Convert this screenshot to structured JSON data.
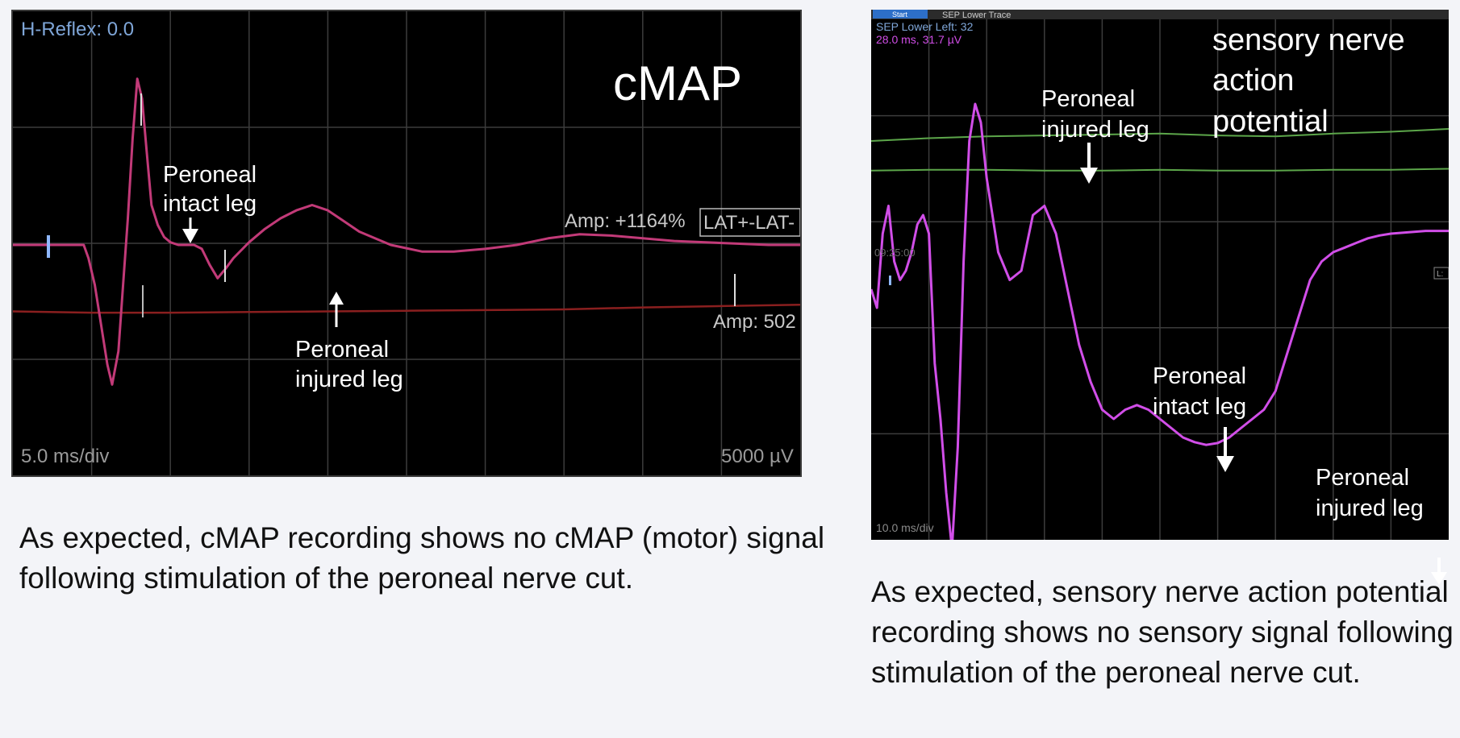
{
  "left_panel": {
    "header_readout": "H-Reflex: 0.0",
    "title": "cMAP",
    "amp_readout": "Amp: +1164%",
    "lat_box": "LAT+-LAT-",
    "amp_readout_2": "Amp: 502",
    "timebase": "5.0 ms/div",
    "sensitivity": "5000 µV",
    "annotation_intact_line1": "Peroneal",
    "annotation_intact_line2": "intact leg",
    "annotation_injured_line1": "Peroneal",
    "annotation_injured_line2": "injured leg",
    "caption": "As expected, cMAP recording shows no cMAP (motor) signal following stimulation of the peroneal nerve cut.",
    "colors": {
      "intact_trace": "#c23a78",
      "injured_trace": "#8a1f1f",
      "grid": "#3c3c3c",
      "overlay_text": "#7fa6d8"
    }
  },
  "right_panel": {
    "tab_start": "Start",
    "tab_trace": "SEP Lower Trace",
    "header_readout": "SEP Lower Left: 32",
    "cursor_readout": "28.0 ms, 31.7 µV",
    "time_stamp": "09:25:00",
    "side_marker": "L:",
    "title_line1": "sensory nerve",
    "title_line2": "action",
    "title_line3": "potential",
    "timebase": "10.0 ms/div",
    "annotation_injured_top_line1": "Peroneal",
    "annotation_injured_top_line2": "injured leg",
    "annotation_intact_line1": "Peroneal",
    "annotation_intact_line2": "intact leg",
    "annotation_injured_bottom_line1": "Peroneal",
    "annotation_injured_bottom_line2": "injured leg",
    "caption": "As expected, sensory nerve action potential recording shows no sensory signal following stimulation of the peroneal nerve cut.",
    "colors": {
      "sensory_trace": "#d14ee8",
      "flat_traces": "#5ca64a",
      "grid": "#3c3c3c",
      "overlay_text": "#7fa6d8"
    }
  },
  "chart_data": [
    {
      "type": "line",
      "title": "cMAP",
      "x_unit": "ms",
      "xlim": [
        0,
        50
      ],
      "series": [
        {
          "x": [
            0,
            4.5,
            4.8,
            5.2,
            5.6,
            6.0,
            6.3,
            6.7,
            7.0,
            7.3,
            7.6,
            7.9,
            8.2,
            8.5,
            8.8,
            9.2,
            9.6,
            10.0,
            10.5,
            11.0,
            11.5,
            12.0,
            12.5,
            13.0,
            13.5,
            14.0,
            15.0,
            16.0,
            17.0,
            18.0,
            19.0,
            20.0,
            21.0,
            22.0,
            24.0,
            26.0,
            28.0,
            30.0,
            32.0,
            34.0,
            36.0,
            38.0,
            40.0,
            42.0,
            44.0,
            46.0,
            48.0,
            50.0
          ],
          "y": [
            0,
            0,
            -1,
            -3,
            -6,
            -9,
            -10.5,
            -8,
            -3,
            2,
            8,
            12.5,
            11,
            7,
            3,
            1.5,
            0.6,
            0.2,
            0,
            0,
            0,
            -0.3,
            -1.5,
            -2.5,
            -1.8,
            -1,
            0.2,
            1.2,
            2.0,
            2.6,
            3.0,
            2.6,
            1.8,
            1.0,
            0,
            -0.5,
            -0.5,
            -0.3,
            0,
            0.5,
            0.8,
            0.7,
            0.5,
            0.3,
            0.2,
            0.1,
            0,
            0
          ]
        },
        {
          "x": [
            0,
            5,
            10,
            15,
            20,
            25,
            30,
            35,
            40,
            45,
            50
          ],
          "y": [
            -5,
            -5.1,
            -5.1,
            -5.05,
            -5,
            -4.95,
            -4.9,
            -4.85,
            -4.7,
            -4.6,
            -4.5
          ]
        }
      ]
    },
    {
      "type": "line",
      "title": "sensory nerve action potential",
      "x_unit": "ms",
      "xlim": [
        0,
        100
      ],
      "series": [
        {
          "x": [
            0,
            1,
            2,
            3,
            4,
            5,
            6,
            7,
            8,
            9,
            10,
            11,
            12,
            13,
            14,
            15,
            16,
            17,
            18,
            19,
            20,
            22,
            24,
            26,
            28,
            30,
            32,
            34,
            36,
            38,
            40,
            42,
            44,
            46,
            48,
            50,
            52,
            54,
            56,
            58,
            60,
            62,
            64,
            66,
            68,
            70,
            72,
            74,
            76,
            78,
            80,
            82,
            84,
            86,
            88,
            90,
            92,
            94,
            96,
            98,
            100
          ],
          "y": [
            2,
            0,
            8,
            11,
            5,
            3,
            4,
            6,
            9,
            10,
            8,
            -6,
            -12,
            -20,
            -26,
            -15,
            5,
            18,
            22,
            20,
            14,
            6,
            3,
            4,
            10,
            11,
            8,
            2,
            -4,
            -8,
            -11,
            -12,
            -11,
            -10.5,
            -11,
            -12,
            -13,
            -14,
            -14.5,
            -14.8,
            -14.6,
            -14,
            -13,
            -12,
            -11,
            -9,
            -5,
            -1,
            3,
            5,
            6,
            6.5,
            7,
            7.5,
            7.8,
            8,
            8.1,
            8.2,
            8.3,
            8.3,
            8.3
          ]
        },
        {
          "x": [
            0,
            10,
            20,
            30,
            40,
            50,
            60,
            70,
            80,
            90,
            100
          ],
          "y": [
            18.0,
            18.3,
            18.5,
            18.6,
            18.7,
            18.8,
            18.6,
            18.5,
            18.8,
            19.0,
            19.3
          ]
        },
        {
          "x": [
            0,
            10,
            20,
            30,
            40,
            50,
            60,
            70,
            80,
            90,
            100
          ],
          "y": [
            14.8,
            14.9,
            14.9,
            14.8,
            14.8,
            14.9,
            14.8,
            14.8,
            14.9,
            14.9,
            15.0
          ]
        }
      ]
    }
  ]
}
